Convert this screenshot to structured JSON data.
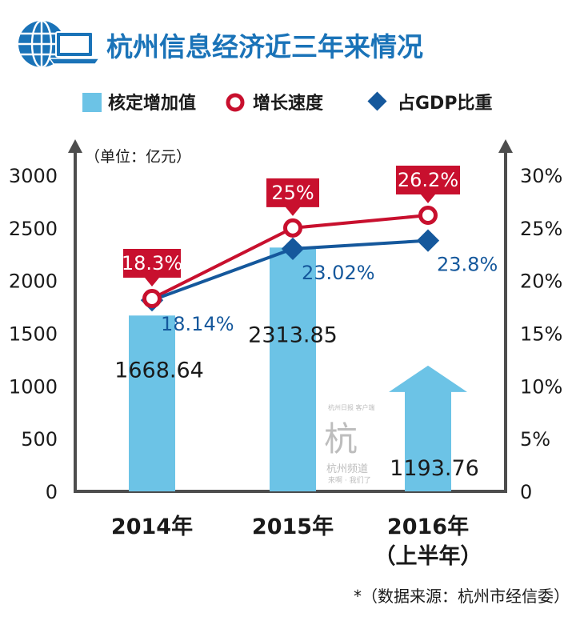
{
  "colors": {
    "title": "#1a73b8",
    "bar": "#6cc3e6",
    "growth": "#c8102e",
    "gdp": "#15589c",
    "axis": "#4d4d4d",
    "text": "#1a1a1a"
  },
  "watermark": {
    "top": "杭州日报 客户端",
    "glyph": "杭",
    "name": "杭州频道",
    "motto": "来啊 · 我们了"
  },
  "chart_data": {
    "type": "bar",
    "title": "杭州信息经济近三年来情况",
    "unit_label": "（单位：亿元）",
    "legend": {
      "bar": "核定增加值",
      "growth": "增长速度",
      "gdp": "占GDP比重"
    },
    "categories": [
      "2014年",
      "2015年",
      "2016年"
    ],
    "category_sublabels": [
      "",
      "",
      "（上半年）"
    ],
    "values": [
      1668.64,
      2313.85,
      1193.76
    ],
    "value_labels": [
      "1668.64",
      "2313.85",
      "1193.76"
    ],
    "series": [
      {
        "name": "增长速度",
        "values": [
          18.3,
          25,
          26.2
        ],
        "labels": [
          "18.3%",
          "25%",
          "26.2%"
        ]
      },
      {
        "name": "占GDP比重",
        "values": [
          18.14,
          23.02,
          23.8
        ],
        "labels": [
          "18.14%",
          "23.02%",
          "23.8%"
        ]
      }
    ],
    "y_left": {
      "min": 0,
      "max": 3000,
      "ticks": [
        "0",
        "500",
        "1000",
        "1500",
        "2000",
        "2500",
        "3000"
      ]
    },
    "y_right": {
      "min": 0,
      "max": 30,
      "ticks": [
        "0",
        "5%",
        "10%",
        "15%",
        "20%",
        "25%",
        "30%"
      ]
    },
    "source": "*（数据来源：杭州市经信委）"
  }
}
